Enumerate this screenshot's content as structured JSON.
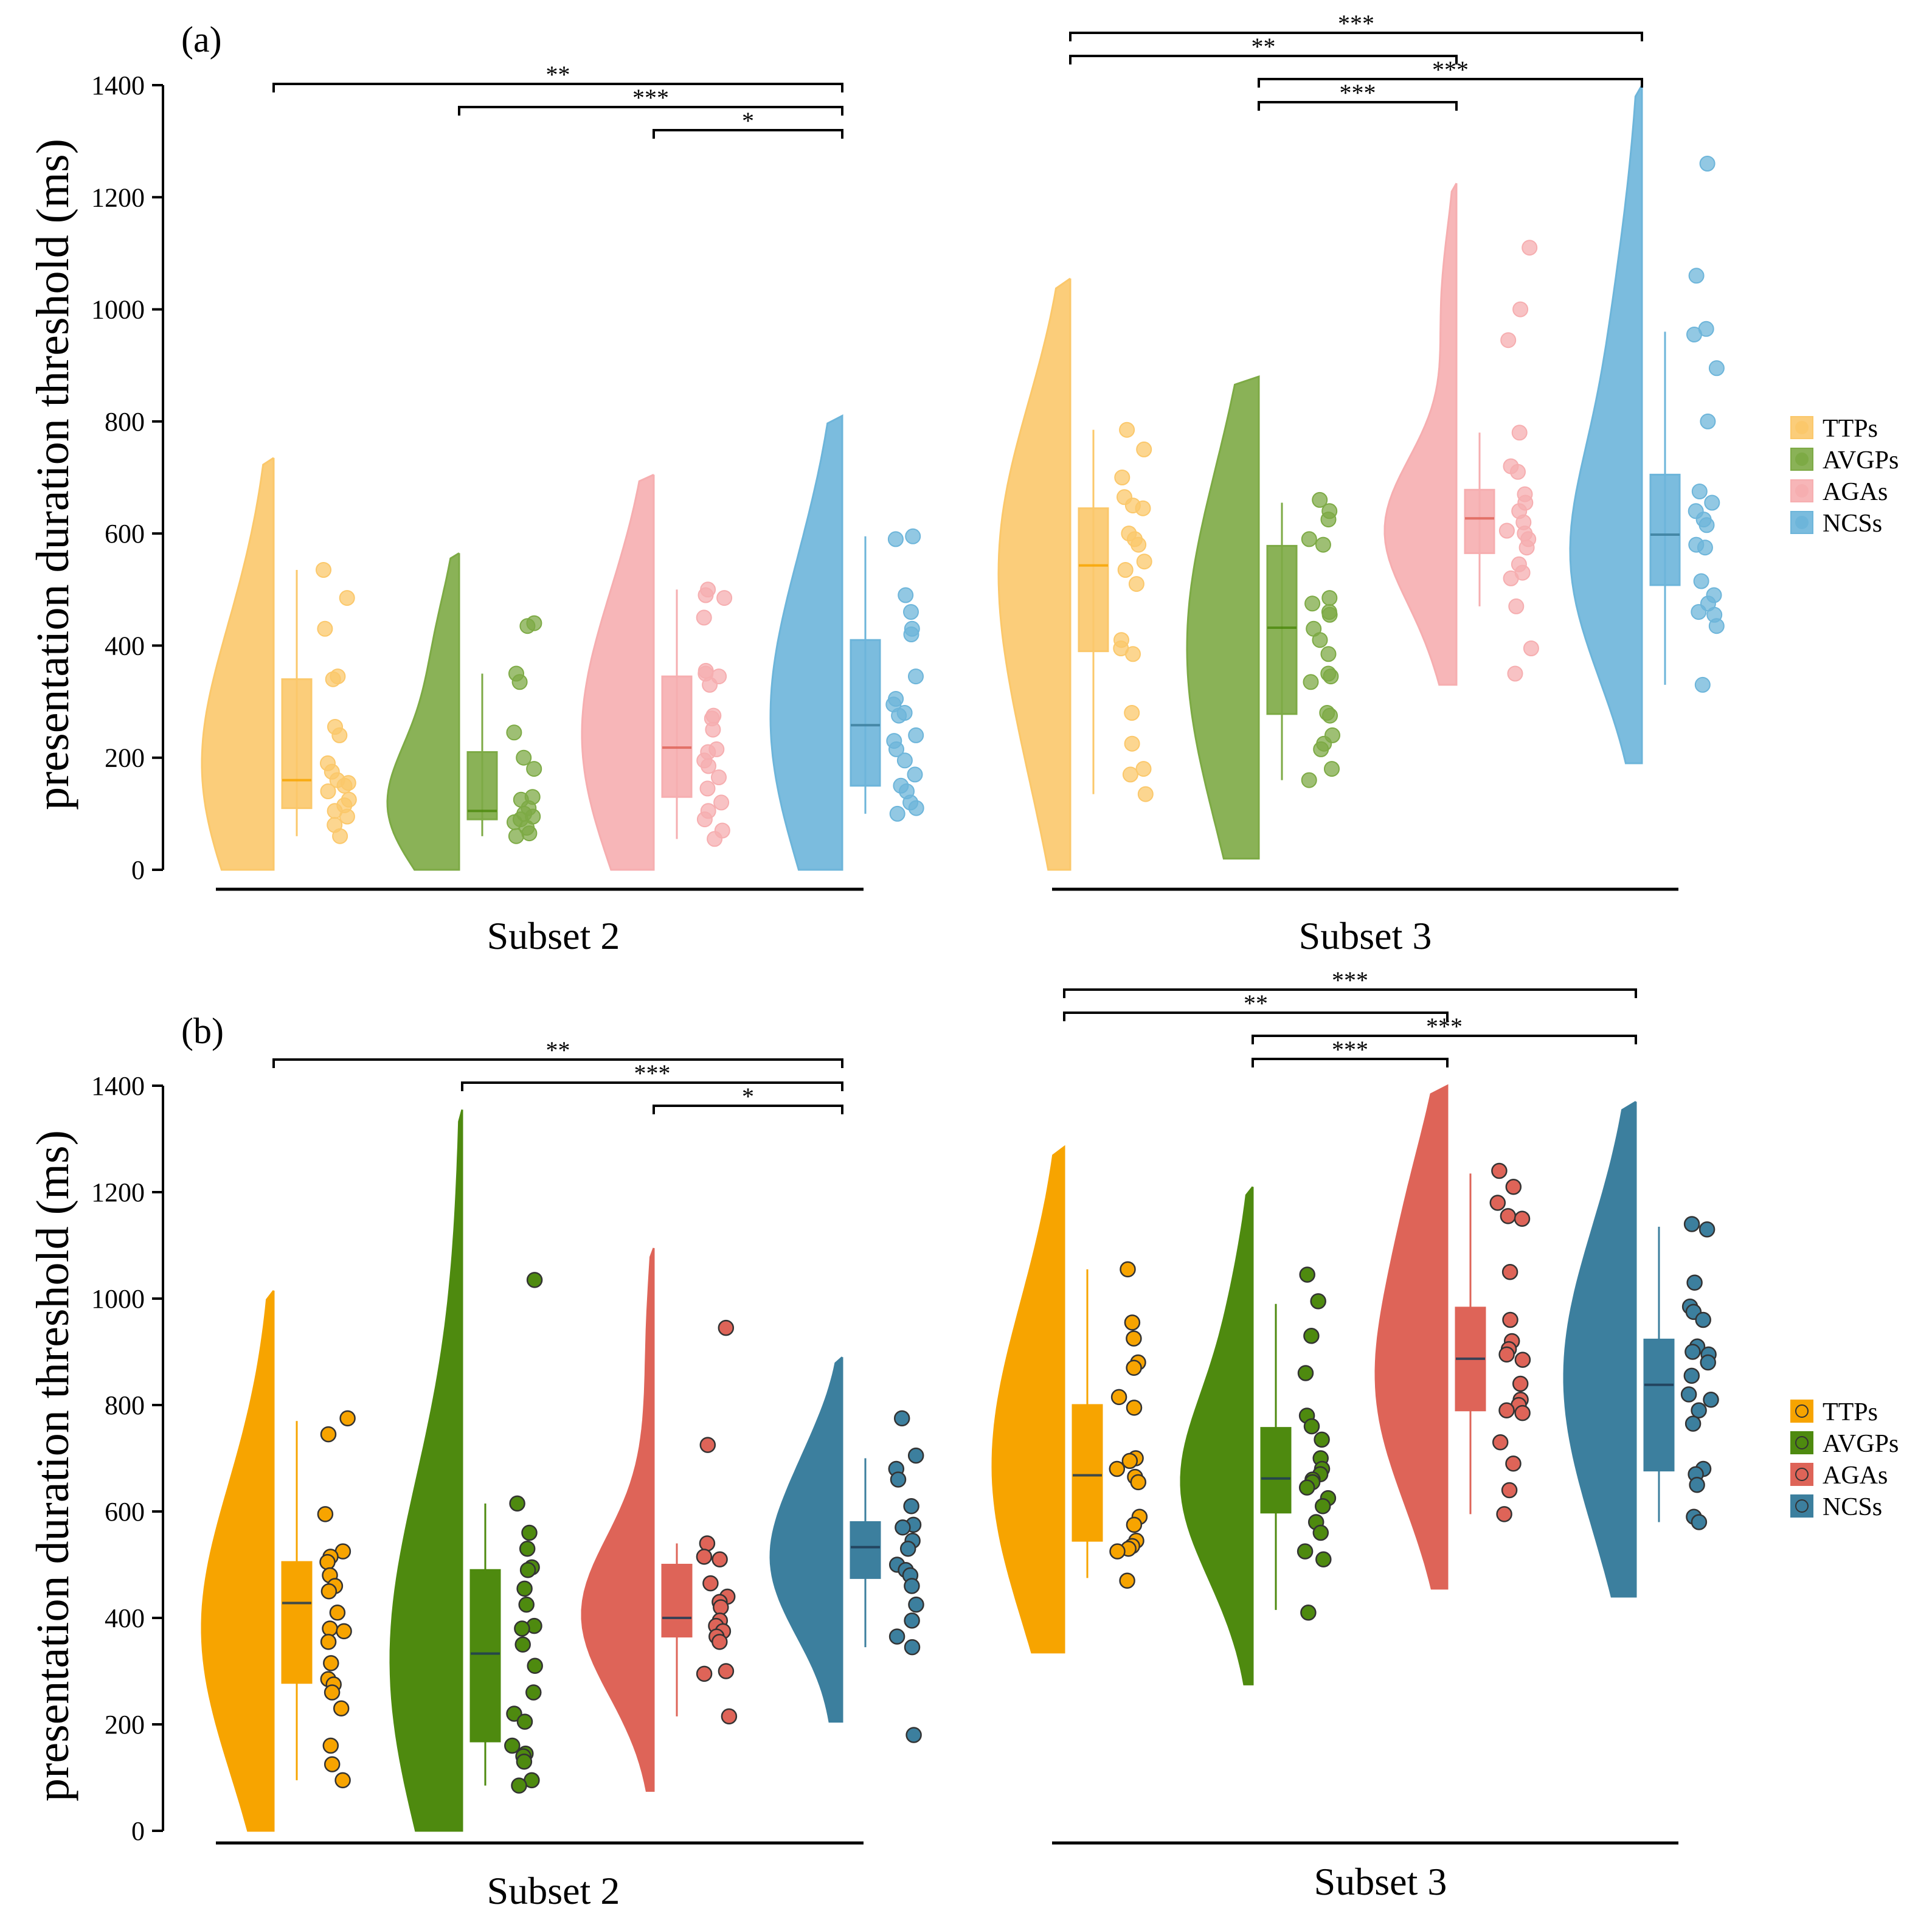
{
  "figure": {
    "y_axis_label": "presentation duration threshold (ms)",
    "legend_labels": [
      "TTPs",
      "AVGPs",
      "AGAs",
      "NCSs"
    ],
    "colors": {
      "light": [
        "#FBC86B",
        "#7DAA45",
        "#F6AEB0",
        "#6DB5DA"
      ],
      "dark": [
        "#F7A400",
        "#4E8A0F",
        "#DE6458",
        "#3C7F9E"
      ]
    }
  },
  "chart_data": [
    {
      "type": "box",
      "panel_label": "(a)",
      "title": "",
      "ylabel": "presentation duration threshold (ms)",
      "ylim": [
        0,
        1400
      ],
      "yticks": [
        0,
        200,
        400,
        600,
        800,
        1000,
        1200,
        1400
      ],
      "legend": [
        "TTPs",
        "AVGPs",
        "AGAs",
        "NCSs"
      ],
      "style": "light",
      "subsets": [
        {
          "label": "Subset 2",
          "groups": [
            {
              "name": "TTPs",
              "min": 60,
              "q1": 110,
              "median": 160,
              "q3": 340,
              "max": 535,
              "density_max": 735,
              "points": [
                535,
                485,
                430,
                345,
                340,
                255,
                240,
                190,
                175,
                160,
                155,
                150,
                140,
                125,
                115,
                105,
                95,
                80,
                60
              ]
            },
            {
              "name": "AVGPs",
              "min": 60,
              "q1": 90,
              "median": 105,
              "q3": 210,
              "max": 350,
              "density_max": 565,
              "points": [
                440,
                435,
                350,
                335,
                245,
                200,
                180,
                130,
                125,
                110,
                100,
                95,
                90,
                85,
                75,
                65,
                60
              ]
            },
            {
              "name": "AGAs",
              "min": 55,
              "q1": 130,
              "median": 218,
              "q3": 345,
              "max": 500,
              "density_max": 705,
              "points": [
                500,
                490,
                485,
                450,
                355,
                350,
                345,
                330,
                275,
                270,
                250,
                215,
                210,
                195,
                185,
                165,
                145,
                120,
                105,
                90,
                70,
                55
              ]
            },
            {
              "name": "NCSs",
              "min": 100,
              "q1": 150,
              "median": 258,
              "q3": 410,
              "max": 595,
              "density_max": 810,
              "points": [
                595,
                590,
                490,
                460,
                430,
                420,
                345,
                305,
                295,
                280,
                275,
                240,
                230,
                215,
                195,
                170,
                150,
                140,
                120,
                110,
                100
              ]
            }
          ],
          "significance": [
            {
              "from": "TTPs",
              "to": "NCSs",
              "label": "**"
            },
            {
              "from": "AVGPs",
              "to": "NCSs",
              "label": "***"
            },
            {
              "from": "AGAs",
              "to": "NCSs",
              "label": "*"
            }
          ]
        },
        {
          "label": "Subset 3",
          "groups": [
            {
              "name": "TTPs",
              "min": 135,
              "q1": 390,
              "median": 543,
              "q3": 645,
              "max": 785,
              "density_max": 1055,
              "points": [
                785,
                750,
                700,
                665,
                650,
                645,
                600,
                590,
                580,
                550,
                535,
                510,
                410,
                395,
                385,
                280,
                225,
                180,
                170,
                135
              ]
            },
            {
              "name": "AVGPs",
              "min": 160,
              "q1": 278,
              "median": 432,
              "q3": 578,
              "max": 655,
              "density_max": 880,
              "points": [
                660,
                640,
                625,
                590,
                580,
                485,
                475,
                460,
                455,
                430,
                410,
                385,
                350,
                345,
                335,
                280,
                275,
                240,
                225,
                215,
                180,
                160
              ]
            },
            {
              "name": "AGAs",
              "min": 470,
              "q1": 565,
              "median": 627,
              "q3": 678,
              "max": 780,
              "density_max": 1225,
              "points": [
                1110,
                1000,
                945,
                780,
                720,
                710,
                670,
                655,
                640,
                620,
                605,
                600,
                590,
                575,
                545,
                530,
                520,
                470,
                395,
                350
              ]
            },
            {
              "name": "NCSs",
              "min": 330,
              "q1": 508,
              "median": 598,
              "q3": 705,
              "max": 960,
              "density_max": 1400,
              "points": [
                1260,
                1060,
                965,
                955,
                895,
                800,
                675,
                655,
                640,
                625,
                615,
                580,
                575,
                515,
                490,
                475,
                460,
                455,
                435,
                330
              ]
            }
          ],
          "significance": [
            {
              "from": "TTPs",
              "to": "NCSs",
              "label": "***"
            },
            {
              "from": "TTPs",
              "to": "AGAs",
              "label": "**"
            },
            {
              "from": "AVGPs",
              "to": "NCSs",
              "label": "***"
            },
            {
              "from": "AVGPs",
              "to": "AGAs",
              "label": "***"
            }
          ]
        }
      ]
    },
    {
      "type": "box",
      "panel_label": "(b)",
      "title": "",
      "ylabel": "presentation duration threshold (ms)",
      "ylim": [
        0,
        1400
      ],
      "yticks": [
        0,
        200,
        400,
        600,
        800,
        1000,
        1200,
        1400
      ],
      "legend": [
        "TTPs",
        "AVGPs",
        "AGAs",
        "NCSs"
      ],
      "style": "dark",
      "subsets": [
        {
          "label": "Subset 2",
          "groups": [
            {
              "name": "TTPs",
              "min": 95,
              "q1": 278,
              "median": 428,
              "q3": 505,
              "max": 770,
              "density_max": 1015,
              "points": [
                775,
                745,
                595,
                525,
                515,
                505,
                480,
                460,
                450,
                410,
                380,
                375,
                355,
                315,
                285,
                275,
                260,
                230,
                160,
                125,
                95
              ]
            },
            {
              "name": "AVGPs",
              "min": 85,
              "q1": 168,
              "median": 333,
              "q3": 490,
              "max": 615,
              "density_max": 1355,
              "points": [
                1035,
                615,
                560,
                530,
                495,
                490,
                455,
                425,
                385,
                380,
                350,
                310,
                260,
                220,
                205,
                160,
                145,
                140,
                130,
                95,
                85
              ]
            },
            {
              "name": "AGAs",
              "min": 215,
              "q1": 365,
              "median": 400,
              "q3": 500,
              "max": 540,
              "density_max": 1095,
              "points": [
                945,
                725,
                540,
                515,
                510,
                465,
                440,
                430,
                420,
                395,
                385,
                375,
                365,
                355,
                300,
                295,
                215
              ]
            },
            {
              "name": "NCSs",
              "min": 345,
              "q1": 475,
              "median": 533,
              "q3": 580,
              "max": 700,
              "density_max": 890,
              "points": [
                775,
                705,
                680,
                660,
                610,
                575,
                570,
                545,
                530,
                500,
                490,
                480,
                460,
                425,
                395,
                365,
                345,
                180
              ]
            }
          ],
          "significance": [
            {
              "from": "TTPs",
              "to": "NCSs",
              "label": "**"
            },
            {
              "from": "AVGPs",
              "to": "NCSs",
              "label": "***"
            },
            {
              "from": "AGAs",
              "to": "NCSs",
              "label": "*"
            }
          ]
        },
        {
          "label": "Subset 3",
          "groups": [
            {
              "name": "TTPs",
              "min": 475,
              "q1": 545,
              "median": 668,
              "q3": 800,
              "max": 1055,
              "density_max": 1285,
              "points": [
                1055,
                955,
                925,
                880,
                870,
                815,
                795,
                700,
                695,
                680,
                665,
                655,
                590,
                575,
                545,
                535,
                530,
                525,
                470
              ]
            },
            {
              "name": "AVGPs",
              "min": 415,
              "q1": 598,
              "median": 662,
              "q3": 757,
              "max": 990,
              "density_max": 1210,
              "points": [
                1045,
                995,
                930,
                860,
                780,
                760,
                735,
                700,
                680,
                670,
                660,
                655,
                645,
                625,
                610,
                580,
                560,
                525,
                510,
                410
              ]
            },
            {
              "name": "AGAs",
              "min": 595,
              "q1": 790,
              "median": 887,
              "q3": 983,
              "max": 1235,
              "density_max": 1400,
              "points": [
                1240,
                1210,
                1180,
                1155,
                1150,
                1050,
                960,
                920,
                905,
                895,
                885,
                840,
                810,
                800,
                790,
                785,
                730,
                690,
                640,
                595
              ]
            },
            {
              "name": "NCSs",
              "min": 580,
              "q1": 677,
              "median": 838,
              "q3": 923,
              "max": 1135,
              "density_max": 1370,
              "points": [
                1140,
                1130,
                1030,
                985,
                975,
                960,
                910,
                900,
                895,
                880,
                855,
                820,
                810,
                790,
                765,
                680,
                670,
                650,
                590,
                580
              ]
            }
          ],
          "significance": [
            {
              "from": "TTPs",
              "to": "NCSs",
              "label": "***"
            },
            {
              "from": "TTPs",
              "to": "AGAs",
              "label": "**"
            },
            {
              "from": "AVGPs",
              "to": "NCSs",
              "label": "***"
            },
            {
              "from": "AVGPs",
              "to": "AGAs",
              "label": "***"
            }
          ]
        }
      ]
    }
  ]
}
